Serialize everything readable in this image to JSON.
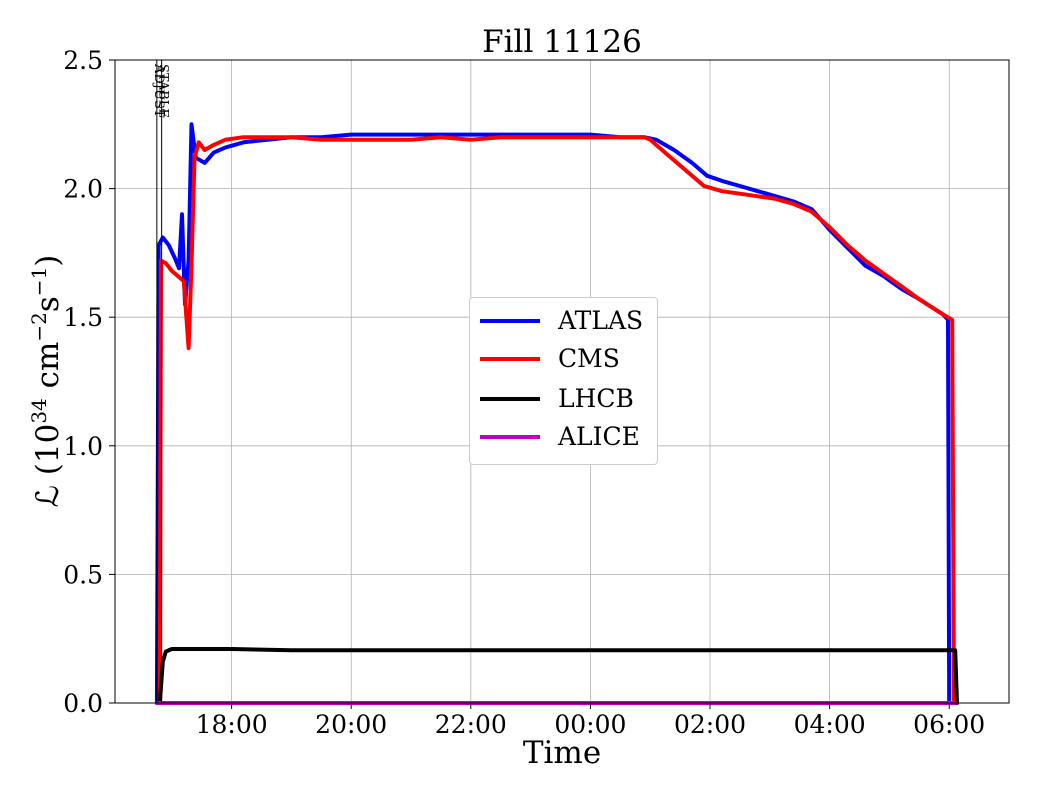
{
  "chart_data": {
    "type": "line",
    "title": "Fill 11126",
    "xlabel": "Time",
    "ylabel_main": "ℒ (10",
    "ylabel_exp1": "34",
    "ylabel_unit": " cm",
    "ylabel_exp2": "−2",
    "ylabel_s": "s",
    "ylabel_exp3": "−1",
    "ylabel_close": ")",
    "x_ticks": [
      "18:00",
      "20:00",
      "22:00",
      "00:00",
      "02:00",
      "04:00",
      "06:00"
    ],
    "x_tick_hours": [
      18,
      20,
      22,
      24,
      26,
      28,
      30
    ],
    "xlim_hours": [
      16.05,
      31.0
    ],
    "ylim": [
      0,
      2.5
    ],
    "y_ticks": [
      "0.0",
      "0.5",
      "1.0",
      "1.5",
      "2.0",
      "2.5"
    ],
    "grid": true,
    "legend_position": "center",
    "annotations": [
      {
        "text": "ADJUST",
        "x_hour": 16.75
      },
      {
        "text": "STABLE",
        "x_hour": 16.83
      }
    ],
    "series": [
      {
        "name": "ATLAS",
        "color": "#0000ff",
        "points": [
          [
            16.75,
            0.0
          ],
          [
            16.78,
            1.78
          ],
          [
            16.85,
            1.81
          ],
          [
            16.95,
            1.78
          ],
          [
            17.05,
            1.73
          ],
          [
            17.12,
            1.69
          ],
          [
            17.17,
            1.9
          ],
          [
            17.22,
            1.55
          ],
          [
            17.28,
            1.72
          ],
          [
            17.33,
            2.25
          ],
          [
            17.4,
            2.12
          ],
          [
            17.55,
            2.1
          ],
          [
            17.7,
            2.14
          ],
          [
            17.9,
            2.16
          ],
          [
            18.2,
            2.18
          ],
          [
            18.6,
            2.19
          ],
          [
            19.0,
            2.2
          ],
          [
            19.5,
            2.2
          ],
          [
            20.0,
            2.21
          ],
          [
            20.5,
            2.21
          ],
          [
            21.0,
            2.21
          ],
          [
            21.5,
            2.21
          ],
          [
            22.0,
            2.21
          ],
          [
            22.5,
            2.21
          ],
          [
            23.0,
            2.21
          ],
          [
            23.5,
            2.21
          ],
          [
            24.0,
            2.21
          ],
          [
            24.5,
            2.2
          ],
          [
            24.9,
            2.2
          ],
          [
            25.1,
            2.19
          ],
          [
            25.4,
            2.15
          ],
          [
            25.7,
            2.1
          ],
          [
            25.95,
            2.05
          ],
          [
            26.2,
            2.03
          ],
          [
            26.5,
            2.01
          ],
          [
            26.8,
            1.99
          ],
          [
            27.1,
            1.97
          ],
          [
            27.4,
            1.95
          ],
          [
            27.7,
            1.92
          ],
          [
            28.0,
            1.84
          ],
          [
            28.3,
            1.77
          ],
          [
            28.6,
            1.7
          ],
          [
            28.9,
            1.66
          ],
          [
            29.2,
            1.61
          ],
          [
            29.5,
            1.57
          ],
          [
            29.7,
            1.54
          ],
          [
            29.9,
            1.51
          ],
          [
            29.98,
            1.49
          ],
          [
            30.0,
            0.0
          ]
        ]
      },
      {
        "name": "CMS",
        "color": "#ff0000",
        "points": [
          [
            16.8,
            0.0
          ],
          [
            16.82,
            1.72
          ],
          [
            16.9,
            1.71
          ],
          [
            17.0,
            1.68
          ],
          [
            17.1,
            1.66
          ],
          [
            17.2,
            1.64
          ],
          [
            17.28,
            1.38
          ],
          [
            17.33,
            1.7
          ],
          [
            17.38,
            2.12
          ],
          [
            17.45,
            2.18
          ],
          [
            17.55,
            2.15
          ],
          [
            17.7,
            2.17
          ],
          [
            17.9,
            2.19
          ],
          [
            18.2,
            2.2
          ],
          [
            18.6,
            2.2
          ],
          [
            19.0,
            2.2
          ],
          [
            19.5,
            2.19
          ],
          [
            20.0,
            2.19
          ],
          [
            20.5,
            2.19
          ],
          [
            21.0,
            2.19
          ],
          [
            21.5,
            2.2
          ],
          [
            22.0,
            2.19
          ],
          [
            22.5,
            2.2
          ],
          [
            23.0,
            2.2
          ],
          [
            23.5,
            2.2
          ],
          [
            24.0,
            2.2
          ],
          [
            24.5,
            2.2
          ],
          [
            24.9,
            2.2
          ],
          [
            25.0,
            2.19
          ],
          [
            25.3,
            2.13
          ],
          [
            25.6,
            2.07
          ],
          [
            25.9,
            2.01
          ],
          [
            26.2,
            1.99
          ],
          [
            26.5,
            1.98
          ],
          [
            26.8,
            1.97
          ],
          [
            27.1,
            1.96
          ],
          [
            27.4,
            1.94
          ],
          [
            27.7,
            1.91
          ],
          [
            28.0,
            1.85
          ],
          [
            28.3,
            1.78
          ],
          [
            28.6,
            1.72
          ],
          [
            28.9,
            1.67
          ],
          [
            29.2,
            1.62
          ],
          [
            29.5,
            1.57
          ],
          [
            29.7,
            1.54
          ],
          [
            29.9,
            1.51
          ],
          [
            30.05,
            1.49
          ],
          [
            30.08,
            0.0
          ]
        ]
      },
      {
        "name": "LHCB",
        "color": "#000000",
        "points": [
          [
            16.8,
            0.0
          ],
          [
            16.85,
            0.16
          ],
          [
            16.9,
            0.2
          ],
          [
            17.0,
            0.21
          ],
          [
            18.0,
            0.21
          ],
          [
            19.0,
            0.205
          ],
          [
            20.0,
            0.205
          ],
          [
            21.0,
            0.205
          ],
          [
            22.0,
            0.205
          ],
          [
            23.0,
            0.205
          ],
          [
            24.0,
            0.205
          ],
          [
            25.0,
            0.205
          ],
          [
            26.0,
            0.205
          ],
          [
            27.0,
            0.205
          ],
          [
            28.0,
            0.205
          ],
          [
            29.0,
            0.205
          ],
          [
            29.7,
            0.205
          ],
          [
            30.1,
            0.205
          ],
          [
            30.13,
            0.0
          ]
        ]
      },
      {
        "name": "ALICE",
        "color": "#c000c0",
        "points": [
          [
            16.75,
            0.0
          ],
          [
            30.1,
            0.0
          ]
        ]
      }
    ]
  }
}
